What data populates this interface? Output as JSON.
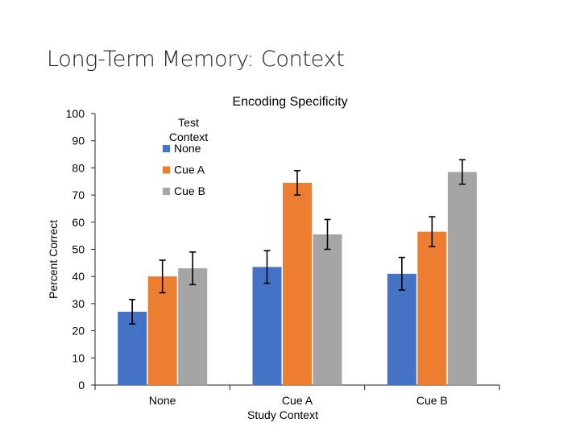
{
  "slide": {
    "title": "Long-Term Memory: Context"
  },
  "chart_data": {
    "type": "bar",
    "title": "Encoding Specificity",
    "xlabel": "Study Context",
    "ylabel": "Percent Correct",
    "ylim": [
      0,
      100
    ],
    "yticks": [
      0,
      10,
      20,
      30,
      40,
      50,
      60,
      70,
      80,
      90,
      100
    ],
    "categories": [
      "None",
      "Cue A",
      "Cue B"
    ],
    "legend": {
      "title": "Test Context",
      "title_lines": [
        "Test",
        "Context"
      ],
      "position": "upper-left inside plot"
    },
    "series": [
      {
        "name": "None",
        "color": "#4472C4",
        "values": [
          27,
          43.5,
          41
        ],
        "error": [
          4.5,
          6,
          6
        ]
      },
      {
        "name": "Cue A",
        "color": "#ED7D31",
        "values": [
          40,
          74.5,
          56.5
        ],
        "error": [
          6,
          4.5,
          5.5
        ]
      },
      {
        "name": "Cue B",
        "color": "#A5A5A5",
        "values": [
          43,
          55.5,
          78.5
        ],
        "error": [
          6,
          5.5,
          4.5
        ]
      }
    ],
    "grid": false
  }
}
